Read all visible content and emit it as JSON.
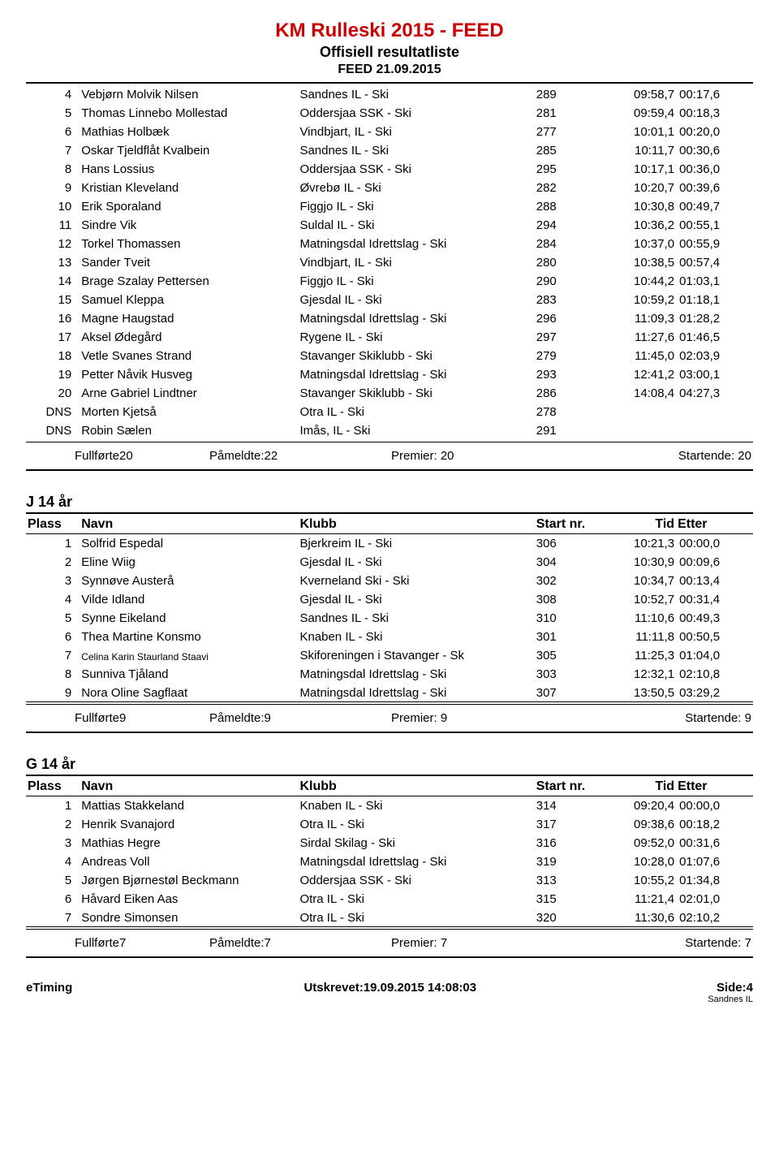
{
  "header": {
    "title": "KM Rulleski 2015 - FEED",
    "subtitle": "Offisiell resultatliste",
    "date": "FEED 21.09.2015",
    "title_color": "#cc0000"
  },
  "columns": {
    "plass": "Plass",
    "navn": "Navn",
    "klubb": "Klubb",
    "startnr": "Start nr.",
    "tid": "Tid",
    "etter": "Etter"
  },
  "section1": {
    "rows": [
      {
        "plass": "4",
        "navn": "Vebjørn Molvik Nilsen",
        "klubb": "Sandnes IL - Ski",
        "snr": "289",
        "tid": "09:58,7",
        "etter": "00:17,6"
      },
      {
        "plass": "5",
        "navn": "Thomas Linnebo Mollestad",
        "klubb": "Oddersjaa SSK - Ski",
        "snr": "281",
        "tid": "09:59,4",
        "etter": "00:18,3"
      },
      {
        "plass": "6",
        "navn": "Mathias Holbæk",
        "klubb": "Vindbjart, IL - Ski",
        "snr": "277",
        "tid": "10:01,1",
        "etter": "00:20,0"
      },
      {
        "plass": "7",
        "navn": "Oskar Tjeldflåt Kvalbein",
        "klubb": "Sandnes IL - Ski",
        "snr": "285",
        "tid": "10:11,7",
        "etter": "00:30,6"
      },
      {
        "plass": "8",
        "navn": "Hans Lossius",
        "klubb": "Oddersjaa SSK - Ski",
        "snr": "295",
        "tid": "10:17,1",
        "etter": "00:36,0"
      },
      {
        "plass": "9",
        "navn": "Kristian Kleveland",
        "klubb": "Øvrebø IL - Ski",
        "snr": "282",
        "tid": "10:20,7",
        "etter": "00:39,6"
      },
      {
        "plass": "10",
        "navn": "Erik Sporaland",
        "klubb": "Figgjo IL - Ski",
        "snr": "288",
        "tid": "10:30,8",
        "etter": "00:49,7"
      },
      {
        "plass": "11",
        "navn": "Sindre Vik",
        "klubb": "Suldal IL - Ski",
        "snr": "294",
        "tid": "10:36,2",
        "etter": "00:55,1"
      },
      {
        "plass": "12",
        "navn": "Torkel Thomassen",
        "klubb": "Matningsdal Idrettslag - Ski",
        "snr": "284",
        "tid": "10:37,0",
        "etter": "00:55,9"
      },
      {
        "plass": "13",
        "navn": "Sander Tveit",
        "klubb": "Vindbjart, IL - Ski",
        "snr": "280",
        "tid": "10:38,5",
        "etter": "00:57,4"
      },
      {
        "plass": "14",
        "navn": "Brage Szalay Pettersen",
        "klubb": "Figgjo IL - Ski",
        "snr": "290",
        "tid": "10:44,2",
        "etter": "01:03,1"
      },
      {
        "plass": "15",
        "navn": "Samuel Kleppa",
        "klubb": "Gjesdal IL - Ski",
        "snr": "283",
        "tid": "10:59,2",
        "etter": "01:18,1"
      },
      {
        "plass": "16",
        "navn": "Magne Haugstad",
        "klubb": "Matningsdal Idrettslag - Ski",
        "snr": "296",
        "tid": "11:09,3",
        "etter": "01:28,2"
      },
      {
        "plass": "17",
        "navn": "Aksel Ødegård",
        "klubb": "Rygene IL - Ski",
        "snr": "297",
        "tid": "11:27,6",
        "etter": "01:46,5"
      },
      {
        "plass": "18",
        "navn": "Vetle Svanes Strand",
        "klubb": "Stavanger Skiklubb - Ski",
        "snr": "279",
        "tid": "11:45,0",
        "etter": "02:03,9"
      },
      {
        "plass": "19",
        "navn": "Petter Nåvik Husveg",
        "klubb": "Matningsdal Idrettslag - Ski",
        "snr": "293",
        "tid": "12:41,2",
        "etter": "03:00,1"
      },
      {
        "plass": "20",
        "navn": "Arne Gabriel Lindtner",
        "klubb": "Stavanger Skiklubb - Ski",
        "snr": "286",
        "tid": "14:08,4",
        "etter": "04:27,3"
      },
      {
        "plass": "DNS",
        "navn": "Morten Kjetså",
        "klubb": "Otra IL - Ski",
        "snr": "278",
        "tid": "",
        "etter": ""
      },
      {
        "plass": "DNS",
        "navn": "Robin Sælen",
        "klubb": "Imås, IL - Ski",
        "snr": "291",
        "tid": "",
        "etter": ""
      }
    ],
    "summary": {
      "fullforte": "Fullførte20",
      "pameldte": "Påmeldte:22",
      "premier": "Premier: 20",
      "startende": "Startende: 20"
    }
  },
  "section2": {
    "category": "J 14 år",
    "rows": [
      {
        "plass": "1",
        "navn": "Solfrid Espedal",
        "klubb": "Bjerkreim IL - Ski",
        "snr": "306",
        "tid": "10:21,3",
        "etter": "00:00,0"
      },
      {
        "plass": "2",
        "navn": "Eline Wiig",
        "klubb": "Gjesdal IL - Ski",
        "snr": "304",
        "tid": "10:30,9",
        "etter": "00:09,6"
      },
      {
        "plass": "3",
        "navn": "Synnøve Austerå",
        "klubb": "Kverneland Ski - Ski",
        "snr": "302",
        "tid": "10:34,7",
        "etter": "00:13,4"
      },
      {
        "plass": "4",
        "navn": "Vilde Idland",
        "klubb": "Gjesdal IL - Ski",
        "snr": "308",
        "tid": "10:52,7",
        "etter": "00:31,4"
      },
      {
        "plass": "5",
        "navn": "Synne Eikeland",
        "klubb": "Sandnes IL - Ski",
        "snr": "310",
        "tid": "11:10,6",
        "etter": "00:49,3"
      },
      {
        "plass": "6",
        "navn": "Thea Martine Konsmo",
        "klubb": "Knaben IL - Ski",
        "snr": "301",
        "tid": "11:11,8",
        "etter": "00:50,5"
      },
      {
        "plass": "7",
        "navn": "Celina Karin Staurland Staavi",
        "klubb": "Skiforeningen i Stavanger - Sk",
        "snr": "305",
        "tid": "11:25,3",
        "etter": "01:04,0",
        "small": true
      },
      {
        "plass": "8",
        "navn": "Sunniva Tjåland",
        "klubb": "Matningsdal Idrettslag - Ski",
        "snr": "303",
        "tid": "12:32,1",
        "etter": "02:10,8"
      },
      {
        "plass": "9",
        "navn": "Nora Oline Sagflaat",
        "klubb": "Matningsdal Idrettslag - Ski",
        "snr": "307",
        "tid": "13:50,5",
        "etter": "03:29,2"
      }
    ],
    "summary": {
      "fullforte": "Fullførte9",
      "pameldte": "Påmeldte:9",
      "premier": "Premier: 9",
      "startende": "Startende: 9"
    }
  },
  "section3": {
    "category": "G 14 år",
    "rows": [
      {
        "plass": "1",
        "navn": "Mattias Stakkeland",
        "klubb": "Knaben IL - Ski",
        "snr": "314",
        "tid": "09:20,4",
        "etter": "00:00,0"
      },
      {
        "plass": "2",
        "navn": "Henrik Svanajord",
        "klubb": "Otra IL - Ski",
        "snr": "317",
        "tid": "09:38,6",
        "etter": "00:18,2"
      },
      {
        "plass": "3",
        "navn": "Mathias Hegre",
        "klubb": "Sirdal Skilag - Ski",
        "snr": "316",
        "tid": "09:52,0",
        "etter": "00:31,6"
      },
      {
        "plass": "4",
        "navn": "Andreas Voll",
        "klubb": "Matningsdal Idrettslag - Ski",
        "snr": "319",
        "tid": "10:28,0",
        "etter": "01:07,6"
      },
      {
        "plass": "5",
        "navn": "Jørgen Bjørnestøl Beckmann",
        "klubb": "Oddersjaa SSK - Ski",
        "snr": "313",
        "tid": "10:55,2",
        "etter": "01:34,8"
      },
      {
        "plass": "6",
        "navn": "Håvard Eiken Aas",
        "klubb": "Otra IL - Ski",
        "snr": "315",
        "tid": "11:21,4",
        "etter": "02:01,0"
      },
      {
        "plass": "7",
        "navn": "Sondre Simonsen",
        "klubb": "Otra IL - Ski",
        "snr": "320",
        "tid": "11:30,6",
        "etter": "02:10,2"
      }
    ],
    "summary": {
      "fullforte": "Fullførte7",
      "pameldte": "Påmeldte:7",
      "premier": "Premier: 7",
      "startende": "Startende: 7"
    }
  },
  "footer": {
    "left": "eTiming",
    "center": "Utskrevet:19.09.2015 14:08:03",
    "right": "Side:4",
    "right_sub": "Sandnes IL"
  }
}
